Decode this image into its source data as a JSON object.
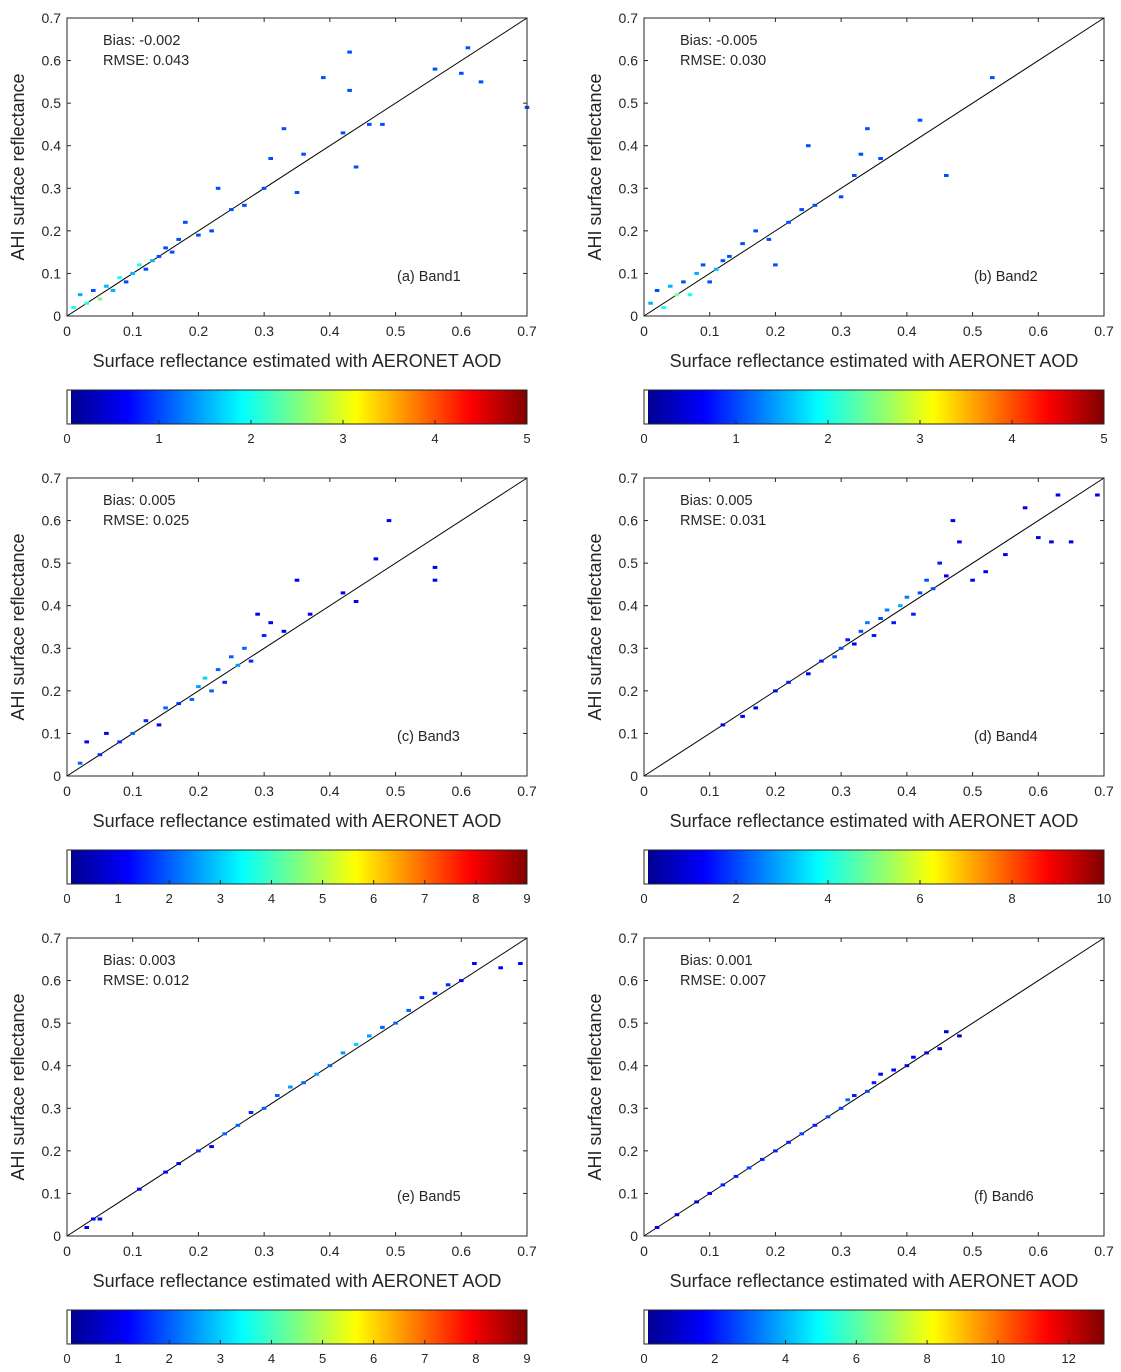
{
  "colorscale": [
    "#00008f",
    "#0000ff",
    "#0080ff",
    "#00ffff",
    "#80ff80",
    "#ffff00",
    "#ff8000",
    "#ff0000",
    "#800000"
  ],
  "colorbar_low_color": "#fffff0",
  "chart_data": [
    {
      "type": "heatmap",
      "panel": "a",
      "xlabel": "Surface reflectance estimated with AERONET AOD",
      "ylabel": "AHI surface reflectance",
      "xlim": [
        0,
        0.7
      ],
      "ylim": [
        0,
        0.7
      ],
      "xticks": [
        "0",
        "0.1",
        "0.2",
        "0.3",
        "0.4",
        "0.5",
        "0.6",
        "0.7"
      ],
      "yticks": [
        "0",
        "0.1",
        "0.2",
        "0.3",
        "0.4",
        "0.5",
        "0.6",
        "0.7"
      ],
      "bias_text": "Bias: -0.002",
      "rmse_text": "RMSE: 0.043",
      "band_label": "(a) Band1",
      "colorbar": {
        "min": 0,
        "max": 5,
        "ticks": [
          "0",
          "1",
          "2",
          "3",
          "4",
          "5"
        ]
      },
      "points": [
        [
          0.01,
          0.02,
          2
        ],
        [
          0.02,
          0.05,
          1.5
        ],
        [
          0.03,
          0.03,
          2
        ],
        [
          0.04,
          0.06,
          1
        ],
        [
          0.05,
          0.04,
          2.5
        ],
        [
          0.06,
          0.07,
          1.5
        ],
        [
          0.07,
          0.06,
          1.5
        ],
        [
          0.08,
          0.09,
          2
        ],
        [
          0.09,
          0.08,
          1
        ],
        [
          0.1,
          0.1,
          1.5
        ],
        [
          0.11,
          0.12,
          2
        ],
        [
          0.12,
          0.11,
          1
        ],
        [
          0.13,
          0.13,
          1.5
        ],
        [
          0.14,
          0.14,
          1
        ],
        [
          0.15,
          0.16,
          1
        ],
        [
          0.16,
          0.15,
          1
        ],
        [
          0.17,
          0.18,
          1
        ],
        [
          0.18,
          0.22,
          1
        ],
        [
          0.2,
          0.19,
          1
        ],
        [
          0.22,
          0.2,
          1
        ],
        [
          0.23,
          0.3,
          1
        ],
        [
          0.25,
          0.25,
          1
        ],
        [
          0.27,
          0.26,
          1
        ],
        [
          0.3,
          0.3,
          1
        ],
        [
          0.31,
          0.37,
          1
        ],
        [
          0.33,
          0.44,
          1
        ],
        [
          0.35,
          0.29,
          1
        ],
        [
          0.36,
          0.38,
          1
        ],
        [
          0.39,
          0.56,
          1
        ],
        [
          0.42,
          0.43,
          1
        ],
        [
          0.43,
          0.53,
          1
        ],
        [
          0.43,
          0.62,
          1
        ],
        [
          0.44,
          0.35,
          1
        ],
        [
          0.46,
          0.45,
          1
        ],
        [
          0.48,
          0.45,
          1
        ],
        [
          0.56,
          0.58,
          1
        ],
        [
          0.6,
          0.57,
          1
        ],
        [
          0.61,
          0.63,
          1
        ],
        [
          0.63,
          0.55,
          1
        ],
        [
          0.7,
          0.49,
          1
        ]
      ]
    },
    {
      "type": "heatmap",
      "panel": "b",
      "xlabel": "Surface reflectance estimated with AERONET AOD",
      "ylabel": "AHI surface reflectance",
      "xlim": [
        0,
        0.7
      ],
      "ylim": [
        0,
        0.7
      ],
      "xticks": [
        "0",
        "0.1",
        "0.2",
        "0.3",
        "0.4",
        "0.5",
        "0.6",
        "0.7"
      ],
      "yticks": [
        "0",
        "0.1",
        "0.2",
        "0.3",
        "0.4",
        "0.5",
        "0.6",
        "0.7"
      ],
      "bias_text": "Bias: -0.005",
      "rmse_text": "RMSE: 0.030",
      "band_label": "(b) Band2",
      "colorbar": {
        "min": 0,
        "max": 5,
        "ticks": [
          "0",
          "1",
          "2",
          "3",
          "4",
          "5"
        ]
      },
      "points": [
        [
          0.01,
          0.03,
          1.5
        ],
        [
          0.02,
          0.06,
          1
        ],
        [
          0.03,
          0.02,
          2
        ],
        [
          0.04,
          0.07,
          1.5
        ],
        [
          0.05,
          0.05,
          2.5
        ],
        [
          0.06,
          0.08,
          1
        ],
        [
          0.07,
          0.05,
          2
        ],
        [
          0.08,
          0.1,
          1.5
        ],
        [
          0.09,
          0.12,
          1
        ],
        [
          0.1,
          0.08,
          1
        ],
        [
          0.11,
          0.11,
          1.5
        ],
        [
          0.12,
          0.13,
          1
        ],
        [
          0.13,
          0.14,
          1
        ],
        [
          0.15,
          0.17,
          1
        ],
        [
          0.17,
          0.2,
          1
        ],
        [
          0.19,
          0.18,
          1
        ],
        [
          0.2,
          0.12,
          1
        ],
        [
          0.22,
          0.22,
          1
        ],
        [
          0.24,
          0.25,
          1
        ],
        [
          0.25,
          0.4,
          1
        ],
        [
          0.26,
          0.26,
          1
        ],
        [
          0.3,
          0.28,
          1
        ],
        [
          0.32,
          0.33,
          1
        ],
        [
          0.33,
          0.38,
          1
        ],
        [
          0.34,
          0.44,
          1
        ],
        [
          0.36,
          0.37,
          1
        ],
        [
          0.42,
          0.46,
          1
        ],
        [
          0.46,
          0.33,
          1
        ],
        [
          0.53,
          0.56,
          1
        ]
      ]
    },
    {
      "type": "heatmap",
      "panel": "c",
      "xlabel": "Surface reflectance estimated with AERONET AOD",
      "ylabel": "AHI surface reflectance",
      "xlim": [
        0,
        0.7
      ],
      "ylim": [
        0,
        0.7
      ],
      "xticks": [
        "0",
        "0.1",
        "0.2",
        "0.3",
        "0.4",
        "0.5",
        "0.6",
        "0.7"
      ],
      "yticks": [
        "0",
        "0.1",
        "0.2",
        "0.3",
        "0.4",
        "0.5",
        "0.6",
        "0.7"
      ],
      "bias_text": "Bias: 0.005",
      "rmse_text": "RMSE: 0.025",
      "band_label": "(c) Band3",
      "colorbar": {
        "min": 0,
        "max": 9,
        "ticks": [
          "0",
          "1",
          "2",
          "3",
          "4",
          "5",
          "6",
          "7",
          "8",
          "9"
        ]
      },
      "points": [
        [
          0.02,
          0.03,
          2
        ],
        [
          0.03,
          0.08,
          1
        ],
        [
          0.05,
          0.05,
          1.5
        ],
        [
          0.06,
          0.1,
          1
        ],
        [
          0.08,
          0.08,
          1.5
        ],
        [
          0.1,
          0.1,
          2
        ],
        [
          0.12,
          0.13,
          1.5
        ],
        [
          0.14,
          0.12,
          1
        ],
        [
          0.15,
          0.16,
          2
        ],
        [
          0.17,
          0.17,
          1.5
        ],
        [
          0.19,
          0.18,
          2
        ],
        [
          0.2,
          0.21,
          2.5
        ],
        [
          0.21,
          0.23,
          3
        ],
        [
          0.22,
          0.2,
          2
        ],
        [
          0.23,
          0.25,
          2
        ],
        [
          0.24,
          0.22,
          1.5
        ],
        [
          0.25,
          0.28,
          2
        ],
        [
          0.26,
          0.26,
          2.5
        ],
        [
          0.27,
          0.3,
          2
        ],
        [
          0.28,
          0.27,
          1.5
        ],
        [
          0.29,
          0.38,
          1
        ],
        [
          0.3,
          0.33,
          1.5
        ],
        [
          0.31,
          0.36,
          1
        ],
        [
          0.33,
          0.34,
          1
        ],
        [
          0.35,
          0.46,
          1
        ],
        [
          0.37,
          0.38,
          1
        ],
        [
          0.42,
          0.43,
          1
        ],
        [
          0.44,
          0.41,
          1
        ],
        [
          0.47,
          0.51,
          1
        ],
        [
          0.49,
          0.6,
          1
        ],
        [
          0.56,
          0.46,
          1
        ],
        [
          0.56,
          0.49,
          1
        ]
      ]
    },
    {
      "type": "heatmap",
      "panel": "d",
      "xlabel": "Surface reflectance estimated with AERONET AOD",
      "ylabel": "AHI surface reflectance",
      "xlim": [
        0,
        0.7
      ],
      "ylim": [
        0,
        0.7
      ],
      "xticks": [
        "0",
        "0.1",
        "0.2",
        "0.3",
        "0.4",
        "0.5",
        "0.6",
        "0.7"
      ],
      "yticks": [
        "0",
        "0.1",
        "0.2",
        "0.3",
        "0.4",
        "0.5",
        "0.6",
        "0.7"
      ],
      "bias_text": "Bias: 0.005",
      "rmse_text": "RMSE: 0.031",
      "band_label": "(d) Band4",
      "colorbar": {
        "min": 0,
        "max": 10,
        "ticks": [
          "0",
          "2",
          "4",
          "6",
          "8",
          "10"
        ]
      },
      "points": [
        [
          0.12,
          0.12,
          1
        ],
        [
          0.15,
          0.14,
          1
        ],
        [
          0.17,
          0.16,
          1
        ],
        [
          0.2,
          0.2,
          1
        ],
        [
          0.22,
          0.22,
          1.5
        ],
        [
          0.25,
          0.24,
          1
        ],
        [
          0.27,
          0.27,
          1.5
        ],
        [
          0.29,
          0.28,
          2
        ],
        [
          0.3,
          0.3,
          2
        ],
        [
          0.31,
          0.32,
          1.5
        ],
        [
          0.32,
          0.31,
          1
        ],
        [
          0.33,
          0.34,
          2
        ],
        [
          0.34,
          0.36,
          2.5
        ],
        [
          0.35,
          0.33,
          1.5
        ],
        [
          0.36,
          0.37,
          2
        ],
        [
          0.37,
          0.39,
          2.5
        ],
        [
          0.38,
          0.36,
          1.5
        ],
        [
          0.39,
          0.4,
          3
        ],
        [
          0.4,
          0.42,
          2.5
        ],
        [
          0.41,
          0.38,
          1.5
        ],
        [
          0.42,
          0.43,
          2
        ],
        [
          0.43,
          0.46,
          2
        ],
        [
          0.44,
          0.44,
          2
        ],
        [
          0.45,
          0.5,
          1.5
        ],
        [
          0.46,
          0.47,
          1
        ],
        [
          0.47,
          0.6,
          1
        ],
        [
          0.48,
          0.55,
          1
        ],
        [
          0.5,
          0.46,
          1
        ],
        [
          0.52,
          0.48,
          1
        ],
        [
          0.55,
          0.52,
          1
        ],
        [
          0.58,
          0.63,
          1
        ],
        [
          0.6,
          0.56,
          1
        ],
        [
          0.62,
          0.55,
          1
        ],
        [
          0.63,
          0.66,
          1
        ],
        [
          0.65,
          0.55,
          1
        ],
        [
          0.69,
          0.66,
          1
        ]
      ]
    },
    {
      "type": "heatmap",
      "panel": "e",
      "xlabel": "Surface reflectance estimated with AERONET AOD",
      "ylabel": "AHI surface reflectance",
      "xlim": [
        0,
        0.7
      ],
      "ylim": [
        0,
        0.7
      ],
      "xticks": [
        "0",
        "0.1",
        "0.2",
        "0.3",
        "0.4",
        "0.5",
        "0.6",
        "0.7"
      ],
      "yticks": [
        "0",
        "0.1",
        "0.2",
        "0.3",
        "0.4",
        "0.5",
        "0.6",
        "0.7"
      ],
      "bias_text": "Bias: 0.003",
      "rmse_text": "RMSE: 0.012",
      "band_label": "(e) Band5",
      "colorbar": {
        "min": 0,
        "max": 9,
        "ticks": [
          "0",
          "1",
          "2",
          "3",
          "4",
          "5",
          "6",
          "7",
          "8",
          "9"
        ]
      },
      "points": [
        [
          0.03,
          0.02,
          1
        ],
        [
          0.04,
          0.04,
          1
        ],
        [
          0.05,
          0.04,
          1
        ],
        [
          0.11,
          0.11,
          1
        ],
        [
          0.15,
          0.15,
          1
        ],
        [
          0.17,
          0.17,
          1
        ],
        [
          0.2,
          0.2,
          1.5
        ],
        [
          0.22,
          0.21,
          1
        ],
        [
          0.24,
          0.24,
          2
        ],
        [
          0.26,
          0.26,
          2
        ],
        [
          0.28,
          0.29,
          1.5
        ],
        [
          0.3,
          0.3,
          2
        ],
        [
          0.32,
          0.33,
          2
        ],
        [
          0.34,
          0.35,
          2.5
        ],
        [
          0.36,
          0.36,
          2
        ],
        [
          0.38,
          0.38,
          2.5
        ],
        [
          0.4,
          0.4,
          2
        ],
        [
          0.42,
          0.43,
          2.5
        ],
        [
          0.44,
          0.45,
          3
        ],
        [
          0.46,
          0.47,
          2.5
        ],
        [
          0.48,
          0.49,
          2
        ],
        [
          0.5,
          0.5,
          2
        ],
        [
          0.52,
          0.53,
          2
        ],
        [
          0.54,
          0.56,
          1.5
        ],
        [
          0.56,
          0.57,
          1.5
        ],
        [
          0.58,
          0.59,
          1.5
        ],
        [
          0.6,
          0.6,
          1
        ],
        [
          0.62,
          0.64,
          1
        ],
        [
          0.66,
          0.63,
          1
        ],
        [
          0.69,
          0.64,
          1
        ]
      ]
    },
    {
      "type": "heatmap",
      "panel": "f",
      "xlabel": "Surface reflectance estimated with AERONET AOD",
      "ylabel": "AHI surface reflectance",
      "xlim": [
        0,
        0.7
      ],
      "ylim": [
        0,
        0.7
      ],
      "xticks": [
        "0",
        "0.1",
        "0.2",
        "0.3",
        "0.4",
        "0.5",
        "0.6",
        "0.7"
      ],
      "yticks": [
        "0",
        "0.1",
        "0.2",
        "0.3",
        "0.4",
        "0.5",
        "0.6",
        "0.7"
      ],
      "bias_text": "Bias: 0.001",
      "rmse_text": "RMSE: 0.007",
      "band_label": "(f) Band6",
      "colorbar": {
        "min": 0,
        "max": 13,
        "ticks": [
          "0",
          "2",
          "4",
          "6",
          "8",
          "10",
          "12"
        ]
      },
      "points": [
        [
          0.02,
          0.02,
          1.5
        ],
        [
          0.05,
          0.05,
          1
        ],
        [
          0.08,
          0.08,
          1
        ],
        [
          0.1,
          0.1,
          1.5
        ],
        [
          0.12,
          0.12,
          2
        ],
        [
          0.14,
          0.14,
          2
        ],
        [
          0.16,
          0.16,
          2.5
        ],
        [
          0.18,
          0.18,
          2
        ],
        [
          0.2,
          0.2,
          2
        ],
        [
          0.22,
          0.22,
          2
        ],
        [
          0.24,
          0.24,
          2.5
        ],
        [
          0.26,
          0.26,
          2
        ],
        [
          0.28,
          0.28,
          2.5
        ],
        [
          0.3,
          0.3,
          2.5
        ],
        [
          0.31,
          0.32,
          3
        ],
        [
          0.32,
          0.33,
          2
        ],
        [
          0.34,
          0.34,
          2.5
        ],
        [
          0.35,
          0.36,
          2
        ],
        [
          0.36,
          0.38,
          1.5
        ],
        [
          0.38,
          0.39,
          1.5
        ],
        [
          0.4,
          0.4,
          1
        ],
        [
          0.41,
          0.42,
          1.5
        ],
        [
          0.43,
          0.43,
          1
        ],
        [
          0.45,
          0.44,
          1
        ],
        [
          0.46,
          0.48,
          1
        ],
        [
          0.48,
          0.47,
          1
        ]
      ]
    }
  ]
}
